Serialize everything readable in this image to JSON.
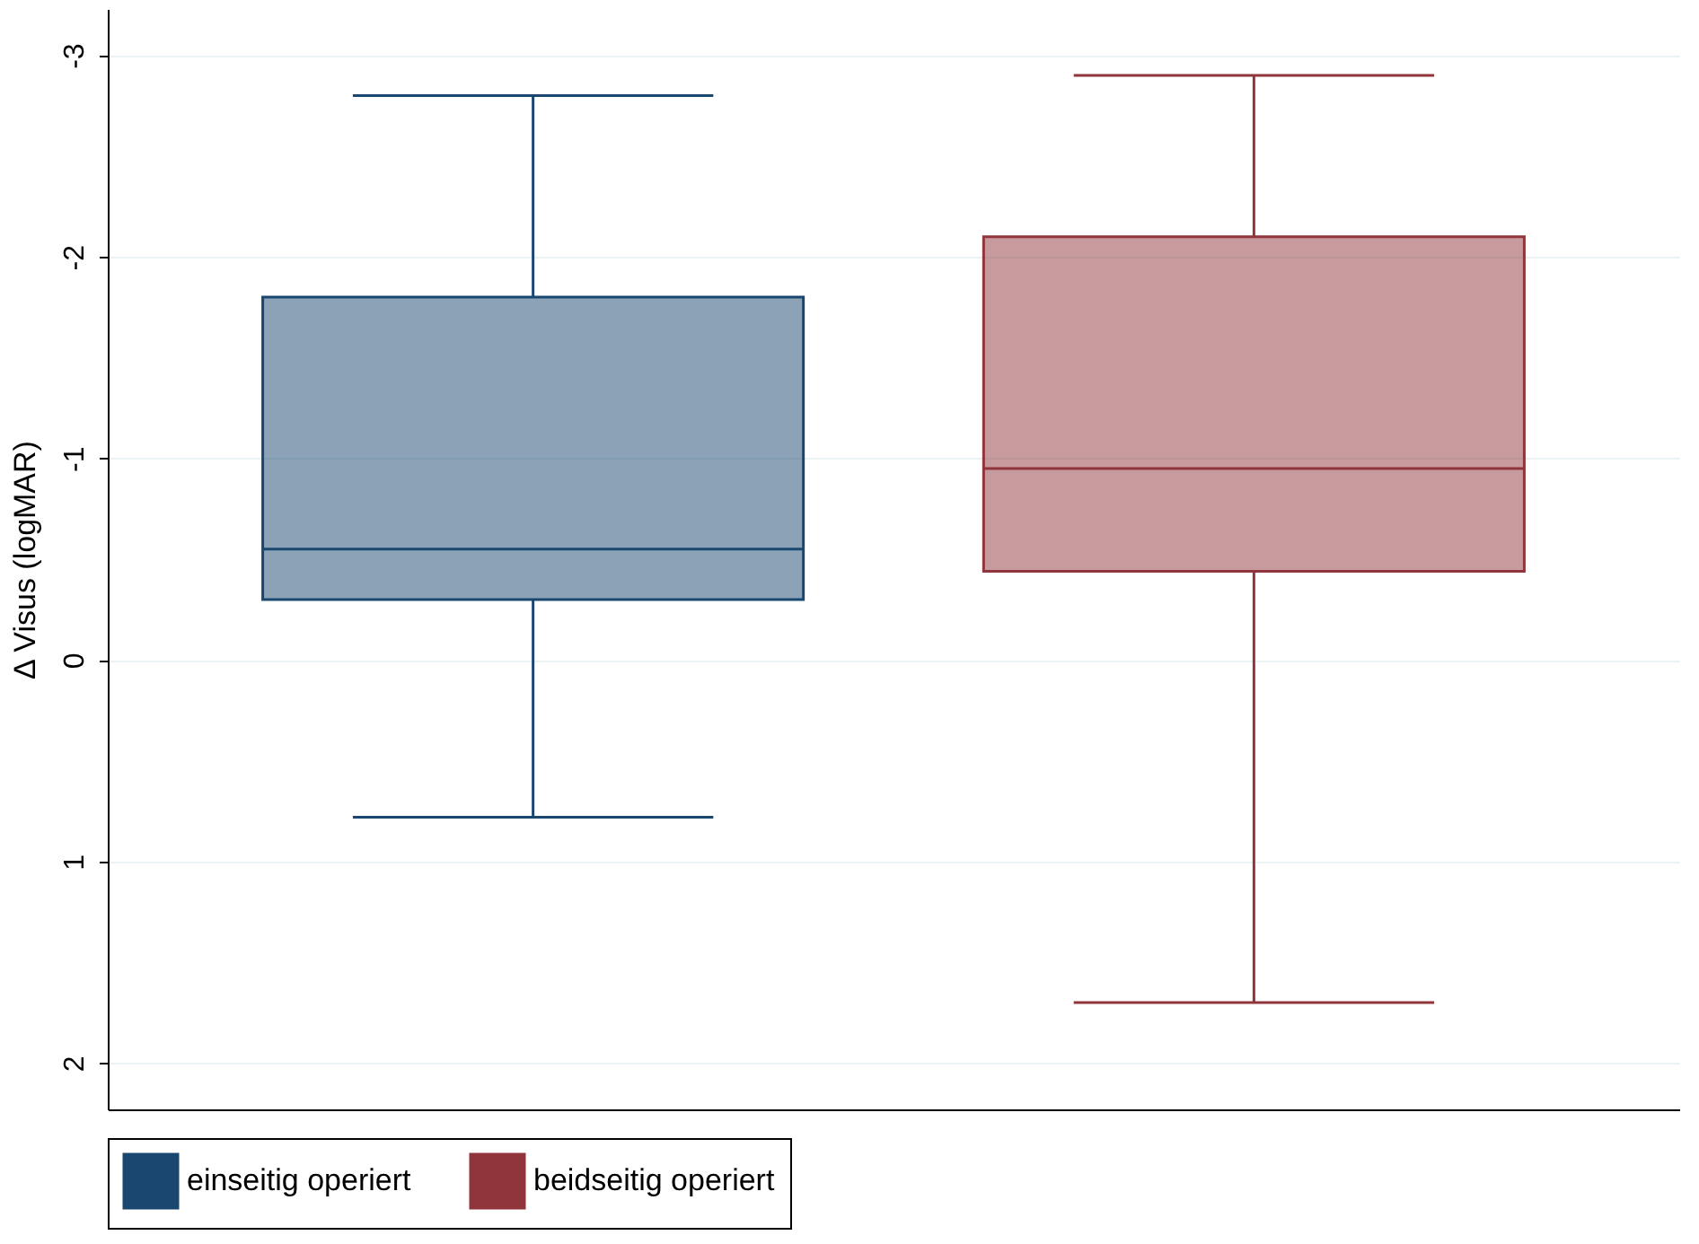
{
  "chart_data": {
    "type": "box",
    "ylabel": "Δ Visus (logMAR)",
    "categories": [
      null,
      null
    ],
    "ylim": [
      2.23,
      -3.23
    ],
    "yticks": [
      2,
      1,
      0,
      -1,
      -2,
      -3
    ],
    "grid": "y",
    "legend": "bottom",
    "series": [
      {
        "name": "einseitig operiert",
        "color": "#1a476f",
        "boxes": [
          {
            "low": 0.78,
            "q1": -0.3,
            "median": -0.55,
            "q3": -1.8,
            "high": -2.8
          },
          null
        ]
      },
      {
        "name": "beidseitig operiert",
        "color": "#90353b",
        "boxes": [
          null,
          {
            "low": 1.7,
            "q1": -0.44,
            "median": -0.95,
            "q3": -2.1,
            "high": -2.9
          }
        ]
      }
    ]
  }
}
